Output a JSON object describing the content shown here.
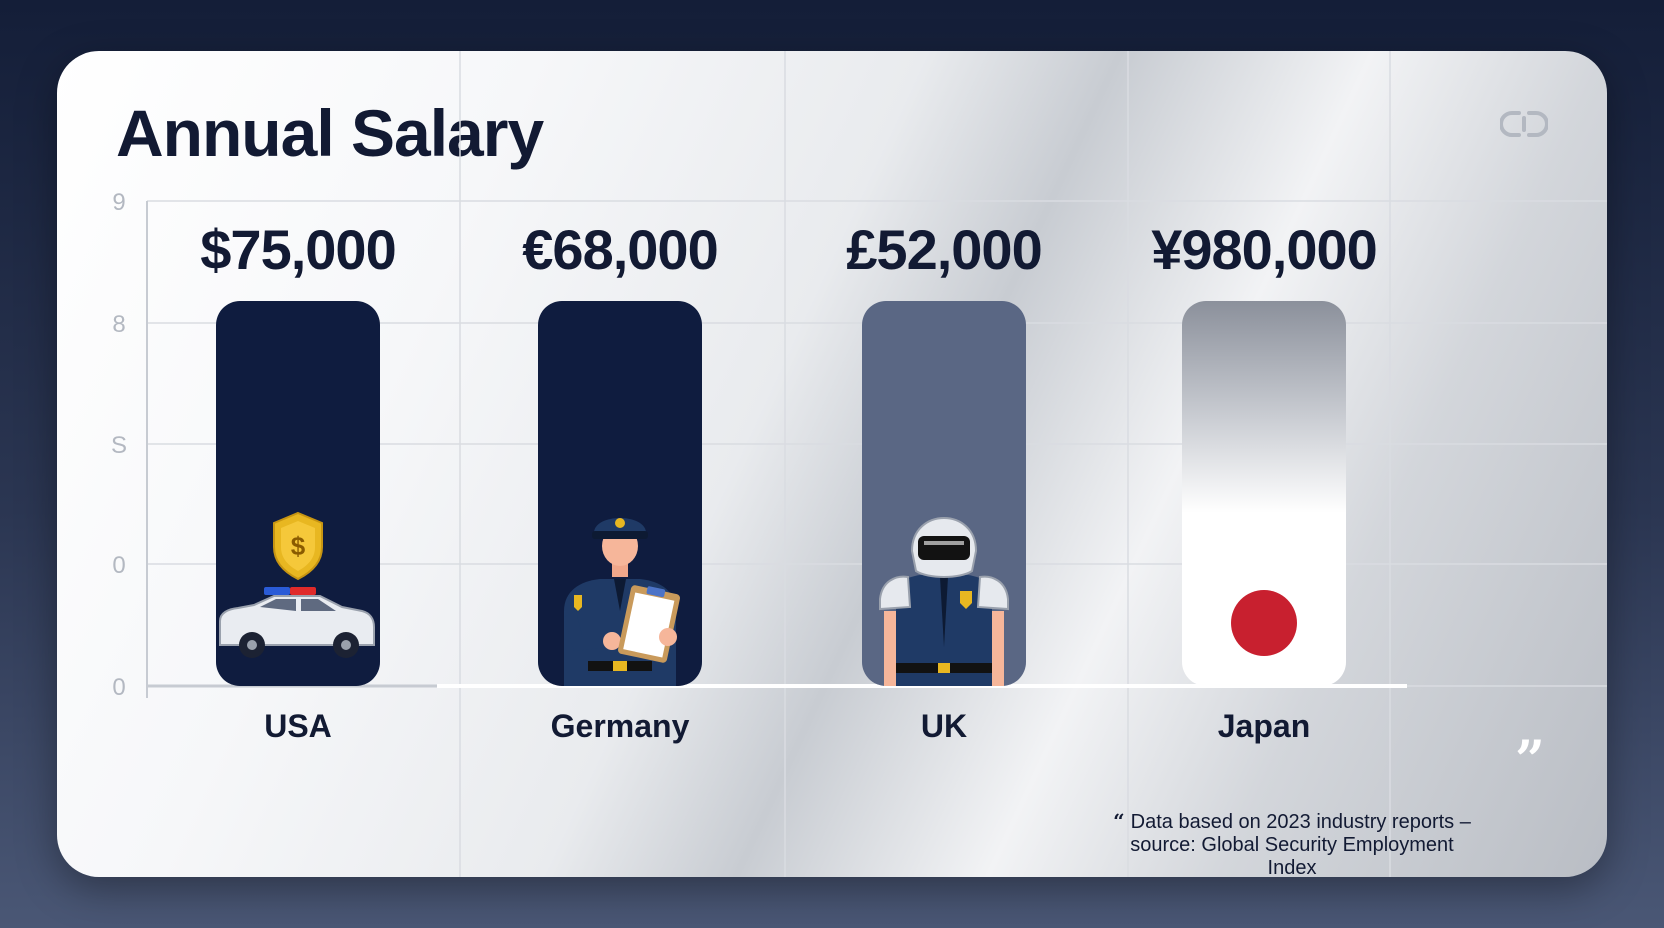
{
  "chart_data": {
    "type": "bar",
    "title": "Annual Salary",
    "categories": [
      "USA",
      "Germany",
      "UK",
      "Japan"
    ],
    "value_labels": [
      "$75,000",
      "€68,000",
      "£52,000",
      "¥980,000"
    ],
    "values": [
      75000,
      68000,
      52000,
      980000
    ],
    "y_ticks": [
      "9",
      "8",
      "S",
      "0",
      "0"
    ],
    "bar_colors": [
      "#0f1c3f",
      "#0f1c3f",
      "#5a6784",
      "#ffffff"
    ],
    "icons": [
      "police-car-shield-icon",
      "police-officer-clipboard-icon",
      "security-guard-helmet-icon",
      "japan-flag-icon"
    ],
    "grid": true,
    "legend": "none"
  },
  "footer": {
    "source_text": "Data based on 2023 industry reports – source: Global Security Employment Index",
    "quote_open": "“",
    "quote_close": "”"
  },
  "colors": {
    "navy": "#0f1c3f",
    "slate": "#5a6784",
    "gold": "#e8b721",
    "flag_red": "#c8202f"
  }
}
